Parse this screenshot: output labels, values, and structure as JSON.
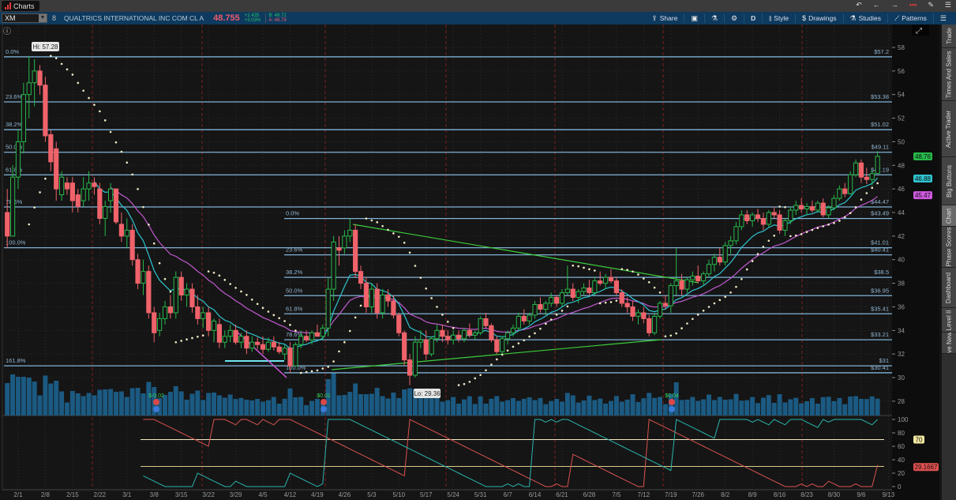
{
  "window": {
    "tab_label": "Charts",
    "icons": [
      "undo-icon",
      "back-icon",
      "forward-icon",
      "link-color-icon",
      "pin-icon",
      "menu-icon"
    ]
  },
  "toolbar": {
    "symbol": "XM",
    "link_label": "8",
    "company": "QUALTRICS INTERNATIONAL INC COM CL A",
    "last": "48.755",
    "change": "+1.435",
    "change_pct": "+3.03%",
    "bid": "B: 48.72",
    "ask": "A: 48.79",
    "share": "Share",
    "aggregation": "D",
    "style": "Style",
    "drawings": "Drawings",
    "studies": "Studies",
    "patterns": "Patterns"
  },
  "side_tabs": [
    "Trade",
    "Times And Sales",
    "Active Trader",
    "Big Buttons",
    "Chart",
    "Phase Scores",
    "Dashboard",
    "Level II",
    "Live News"
  ],
  "active_side_tab": "Chart",
  "colors": {
    "up": "#27b84a",
    "down": "#f0636b",
    "ema_fast": "#2ec4d0",
    "ema_slow": "#c05ad0",
    "sar": "#f3ecc8",
    "volume": "#1b5a82",
    "fib": "#7fb2d6",
    "trend": "#3ccc3c",
    "aroon_up": "#2ab5ad",
    "aroon_down": "#d9534f",
    "accent_last": "#f05a6a"
  },
  "chart_data": {
    "type": "candlestick",
    "price_axis": {
      "range": [
        27,
        58.6
      ],
      "ticks": [
        28,
        30,
        32,
        34,
        36,
        38,
        40,
        42,
        44,
        46,
        48,
        50,
        52,
        54,
        56,
        58
      ]
    },
    "x_ticks": [
      "2/1",
      "2/8",
      "2/15",
      "2/22",
      "3/1",
      "3/8",
      "3/15",
      "3/22",
      "3/29",
      "4/5",
      "4/12",
      "4/19",
      "4/26",
      "5/3",
      "5/10",
      "5/17",
      "5/24",
      "5/31",
      "6/7",
      "6/14",
      "6/21",
      "6/28",
      "7/5",
      "7/12",
      "7/19",
      "7/26",
      "8/2",
      "8/9",
      "8/16",
      "8/23",
      "8/30",
      "9/6",
      "9/13"
    ],
    "candles_ohlc": [
      [
        44,
        46,
        41,
        42
      ],
      [
        42,
        48,
        42,
        47
      ],
      [
        47,
        51,
        46,
        50
      ],
      [
        50,
        55,
        49,
        54
      ],
      [
        54,
        57.28,
        52,
        55
      ],
      [
        55,
        57,
        53,
        56
      ],
      [
        56,
        56.5,
        54,
        54.8
      ],
      [
        54.8,
        55.5,
        50,
        50.5
      ],
      [
        50.6,
        51,
        47.5,
        48.3
      ],
      [
        49.4,
        50,
        45,
        46
      ],
      [
        45.5,
        47.5,
        45,
        47
      ],
      [
        46.5,
        47,
        45.5,
        46
      ],
      [
        46.5,
        47,
        44,
        45
      ],
      [
        45.5,
        46,
        44,
        44.5
      ],
      [
        45,
        47,
        44.5,
        46
      ],
      [
        46,
        47.5,
        45,
        46.5
      ],
      [
        46.5,
        47,
        45.5,
        46.2
      ],
      [
        46,
        46.5,
        43,
        43.5
      ],
      [
        43.5,
        45,
        42,
        44.5
      ],
      [
        45,
        46.5,
        44,
        46
      ],
      [
        46,
        46,
        43,
        43.2
      ],
      [
        43,
        44,
        41.5,
        42
      ],
      [
        42,
        43.5,
        41,
        42.5
      ],
      [
        42.5,
        43,
        39.5,
        40
      ],
      [
        40,
        40.5,
        37.5,
        38
      ],
      [
        38,
        40,
        37,
        39
      ],
      [
        39,
        39.5,
        35,
        35.5
      ],
      [
        35.5,
        36,
        33,
        33.8
      ],
      [
        34,
        35.5,
        33.5,
        35
      ],
      [
        35,
        36.5,
        34.5,
        36
      ],
      [
        36,
        37,
        35,
        35.5
      ],
      [
        35.5,
        39,
        35,
        38.5
      ],
      [
        38.5,
        39,
        36.5,
        37
      ],
      [
        37,
        38,
        36,
        37.5
      ],
      [
        37.5,
        38,
        35.5,
        36
      ],
      [
        36,
        37,
        34.5,
        35
      ],
      [
        35,
        36,
        34.2,
        35.5
      ],
      [
        35.5,
        36,
        33.5,
        34
      ],
      [
        34,
        35,
        33,
        34.8
      ],
      [
        34.5,
        35,
        32.5,
        33
      ],
      [
        33,
        34,
        32.5,
        33.5
      ],
      [
        33.5,
        34.5,
        33,
        34
      ],
      [
        34,
        34.5,
        32.8,
        33
      ],
      [
        33,
        33.8,
        32.5,
        33.5
      ],
      [
        33.5,
        34,
        32,
        32.5
      ],
      [
        32.5,
        33.5,
        32.2,
        33
      ],
      [
        33,
        33.4,
        32.4,
        32.8
      ],
      [
        32.8,
        33.5,
        32,
        32.4
      ],
      [
        32.4,
        33.4,
        32.2,
        33
      ],
      [
        33,
        33.5,
        32.3,
        32.6
      ],
      [
        32.6,
        33,
        32,
        32.2
      ],
      [
        32,
        32.8,
        31.5,
        32.5
      ],
      [
        32.5,
        33,
        30.4,
        31
      ],
      [
        31,
        33,
        31,
        32.8
      ],
      [
        32.8,
        34,
        32.5,
        33.5
      ],
      [
        33.5,
        34,
        33,
        33.2
      ],
      [
        33.2,
        34,
        32.8,
        33.8
      ],
      [
        33.8,
        34.5,
        33.5,
        33.5
      ],
      [
        33.5,
        34.5,
        33.2,
        34.2
      ],
      [
        34.2,
        38.5,
        33.5,
        37.5
      ],
      [
        37.5,
        42,
        36.5,
        41.5
      ],
      [
        41,
        42,
        39.5,
        40.8
      ],
      [
        41,
        42.5,
        40.5,
        42
      ],
      [
        42,
        43.49,
        41.5,
        42.5
      ],
      [
        42.5,
        43,
        38.5,
        39
      ],
      [
        39,
        39.5,
        37.5,
        38
      ],
      [
        38,
        38.5,
        35.5,
        36
      ],
      [
        36,
        38,
        35.5,
        37.5
      ],
      [
        37.5,
        38,
        35,
        35.5
      ],
      [
        35.5,
        37.5,
        35,
        37
      ],
      [
        37,
        37.5,
        36,
        36.5
      ],
      [
        36.5,
        37,
        35,
        35.3
      ],
      [
        35.3,
        35.5,
        33.5,
        33.8
      ],
      [
        33.8,
        34,
        31,
        31.5
      ],
      [
        31.5,
        32,
        29.36,
        30.2
      ],
      [
        30.2,
        33.5,
        30,
        33
      ],
      [
        33,
        34,
        32.5,
        33.2
      ],
      [
        33.2,
        34,
        31.5,
        32
      ],
      [
        32,
        33.5,
        31.8,
        33.3
      ],
      [
        33.3,
        34.5,
        33,
        34
      ],
      [
        34,
        34.5,
        33,
        33.5
      ],
      [
        33.5,
        34,
        32.8,
        33.2
      ],
      [
        33.2,
        34,
        32.8,
        33.6
      ],
      [
        33.6,
        34,
        33,
        33.3
      ],
      [
        33.3,
        34.2,
        33,
        34
      ],
      [
        34,
        34.6,
        33.4,
        33.6
      ],
      [
        33.6,
        34,
        33.2,
        33.8
      ],
      [
        33.8,
        35.2,
        33.6,
        35
      ],
      [
        35,
        35.5,
        34.2,
        34.4
      ],
      [
        34.4,
        34.6,
        33,
        33.2
      ],
      [
        33.2,
        33.5,
        32,
        32.2
      ],
      [
        32.2,
        33.5,
        32,
        33.3
      ],
      [
        33.3,
        34,
        32.8,
        33.8
      ],
      [
        33.8,
        34.5,
        33.5,
        34.2
      ],
      [
        34.2,
        35.5,
        34,
        35.2
      ],
      [
        35.2,
        35.8,
        34.5,
        34.8
      ],
      [
        34.8,
        35.5,
        34.5,
        35.3
      ],
      [
        35.3,
        36.5,
        35,
        36.2
      ],
      [
        36.2,
        36.8,
        35.5,
        35.8
      ],
      [
        35.8,
        36.5,
        35.3,
        36.3
      ],
      [
        36.3,
        37.2,
        36,
        36.8
      ],
      [
        36.8,
        37,
        36,
        36.3
      ],
      [
        36.3,
        37.5,
        36,
        37.2
      ],
      [
        37.2,
        39.5,
        37,
        37.5
      ],
      [
        37.5,
        38,
        36.5,
        36.8
      ],
      [
        36.8,
        37.5,
        36.3,
        37.3
      ],
      [
        37.3,
        38,
        37,
        37.6
      ],
      [
        37.6,
        38.3,
        37,
        37.2
      ],
      [
        37.2,
        38.5,
        37,
        38.2
      ],
      [
        38.2,
        39,
        37.8,
        38
      ],
      [
        38,
        38.8,
        37.5,
        38.5
      ],
      [
        38.5,
        39.2,
        38,
        38.2
      ],
      [
        38.2,
        38.5,
        37,
        37.2
      ],
      [
        37.2,
        37.5,
        36,
        36.3
      ],
      [
        36.3,
        36.8,
        35.5,
        36
      ],
      [
        36,
        36.5,
        34.8,
        35.2
      ],
      [
        35.2,
        35.8,
        34.5,
        35.5
      ],
      [
        35.5,
        36,
        34.6,
        35
      ],
      [
        35,
        35.3,
        33.5,
        33.8
      ],
      [
        33.8,
        35.5,
        33.6,
        35.2
      ],
      [
        35.2,
        36.5,
        35,
        36.3
      ],
      [
        36.3,
        37,
        35.8,
        36.1
      ],
      [
        36.1,
        38,
        35.5,
        37.8
      ],
      [
        37.8,
        41,
        37,
        38.2
      ],
      [
        38.2,
        38.8,
        37,
        37.5
      ],
      [
        37.5,
        38.5,
        37.2,
        38.3
      ],
      [
        38.3,
        39,
        37.8,
        38.6
      ],
      [
        38.6,
        39.5,
        38,
        38.2
      ],
      [
        38.2,
        39,
        37.8,
        38.8
      ],
      [
        38.8,
        40,
        38.5,
        39.6
      ],
      [
        39.6,
        40.5,
        39,
        40.2
      ],
      [
        40.2,
        41,
        39.5,
        39.8
      ],
      [
        39.8,
        41.5,
        39.5,
        41.2
      ],
      [
        41.2,
        42,
        40.5,
        41.6
      ],
      [
        41.6,
        43.2,
        41.3,
        42.8
      ],
      [
        42.8,
        44.2,
        42.5,
        43.8
      ],
      [
        43.8,
        44.2,
        43,
        43.3
      ],
      [
        43.3,
        44,
        42.8,
        43.8
      ],
      [
        43.8,
        44.3,
        43.2,
        43.5
      ],
      [
        43.5,
        44,
        42.5,
        43
      ],
      [
        43,
        44.2,
        42.8,
        44
      ],
      [
        44,
        44.5,
        43.5,
        43.8
      ],
      [
        43.8,
        44.2,
        42.2,
        42.5
      ],
      [
        42.5,
        43.5,
        42,
        43.3
      ],
      [
        43.3,
        44.5,
        43,
        44.2
      ],
      [
        44.2,
        45,
        43.8,
        44.6
      ],
      [
        44.6,
        45.2,
        44,
        44.3
      ],
      [
        44.3,
        44.8,
        43.8,
        44.5
      ],
      [
        44.5,
        45,
        44,
        44.2
      ],
      [
        44.2,
        45,
        44,
        44.8
      ],
      [
        44.8,
        45.2,
        43.6,
        43.8
      ],
      [
        43.8,
        44.6,
        43.5,
        44.4
      ],
      [
        44.4,
        45.5,
        44.2,
        45.2
      ],
      [
        45.2,
        46.3,
        45,
        46
      ],
      [
        46,
        46.5,
        45.3,
        45.6
      ],
      [
        45.6,
        47.5,
        45.5,
        47.2
      ],
      [
        47.2,
        48.5,
        47,
        48.2
      ],
      [
        48.2,
        48.5,
        46.5,
        47
      ],
      [
        47,
        47.8,
        46.4,
        46.8
      ],
      [
        46.8,
        47.6,
        46.3,
        47.3
      ],
      [
        47.32,
        49.2,
        47.3,
        48.76
      ]
    ],
    "high_label": "Hi: 57.28",
    "low_label": "Lo: 29.36",
    "fib_sets": [
      {
        "levels": [
          {
            "pct": "0.0%",
            "price": 57.2,
            "label": "$57.2"
          },
          {
            "pct": "23.6%",
            "price": 53.38,
            "label": "$53.38"
          },
          {
            "pct": "38.2%",
            "price": 51.02,
            "label": "$51.02"
          },
          {
            "pct": "50.0%",
            "price": 49.11,
            "label": "$49.11"
          },
          {
            "pct": "61.8%",
            "price": 47.19,
            "label": "$47.19"
          },
          {
            "pct": "78.6%",
            "price": 44.47,
            "label": "$44.47"
          },
          {
            "pct": "100.0%",
            "price": 41.01,
            "label": "$41.01"
          },
          {
            "pct": "161.8%",
            "price": 31,
            "label": "$31"
          }
        ]
      },
      {
        "levels": [
          {
            "pct": "0.0%",
            "price": 43.49,
            "label": "$43.49"
          },
          {
            "pct": "23.6%",
            "price": 40.41,
            "label": "$40.41"
          },
          {
            "pct": "38.2%",
            "price": 38.5,
            "label": "$38.5"
          },
          {
            "pct": "50.0%",
            "price": 36.95,
            "label": "$36.95"
          },
          {
            "pct": "61.8%",
            "price": 35.41,
            "label": "$35.41"
          },
          {
            "pct": "78.6%",
            "price": 33.21,
            "label": "$33.21"
          },
          {
            "pct": "100.0%",
            "price": 30.41,
            "label": "$30.41"
          }
        ]
      }
    ],
    "price_badges": [
      {
        "value": "48.76",
        "color": "#27b84a"
      },
      {
        "value": "46.88",
        "color": "#2ec4d0"
      },
      {
        "value": "45.47",
        "color": "#d05ae0"
      }
    ],
    "earnings": [
      {
        "date": "3/8",
        "label": "$-0.02"
      },
      {
        "date": "4/22",
        "label": "$0.01"
      },
      {
        "date": "7/21",
        "label": "$0.04"
      }
    ],
    "oscillator": {
      "range": [
        0,
        100
      ],
      "ticks": [
        0,
        20,
        40,
        60,
        80,
        100
      ],
      "levels": [
        70,
        30
      ],
      "badges": [
        {
          "value": "70",
          "color": "#f2e8a0"
        },
        {
          "value": "29.1667",
          "color": "#e05050"
        }
      ]
    }
  }
}
